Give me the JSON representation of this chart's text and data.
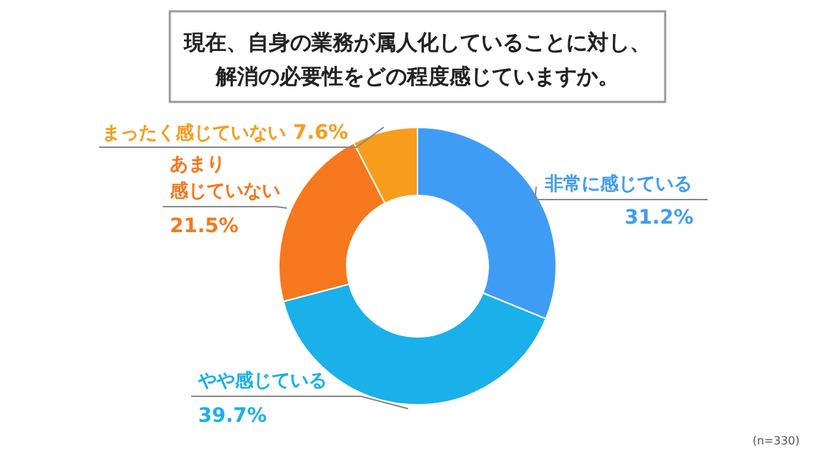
{
  "chart_data": {
    "type": "donut",
    "title": "現在、自身の業務が属人化していることに対し、解消の必要性をどの程度感じていますか。",
    "categories": [
      "非常に感じている",
      "やや感じている",
      "あまり感じていない",
      "まったく感じていない"
    ],
    "values": [
      31.2,
      39.7,
      21.5,
      7.6
    ],
    "value_labels": [
      "31.2%",
      "39.7%",
      "21.5%",
      "7.6%"
    ],
    "colors": [
      "#3f9cf5",
      "#1ab0ea",
      "#f5781e",
      "#f89c1c"
    ],
    "annotations": [
      "(n=330)"
    ]
  }
}
